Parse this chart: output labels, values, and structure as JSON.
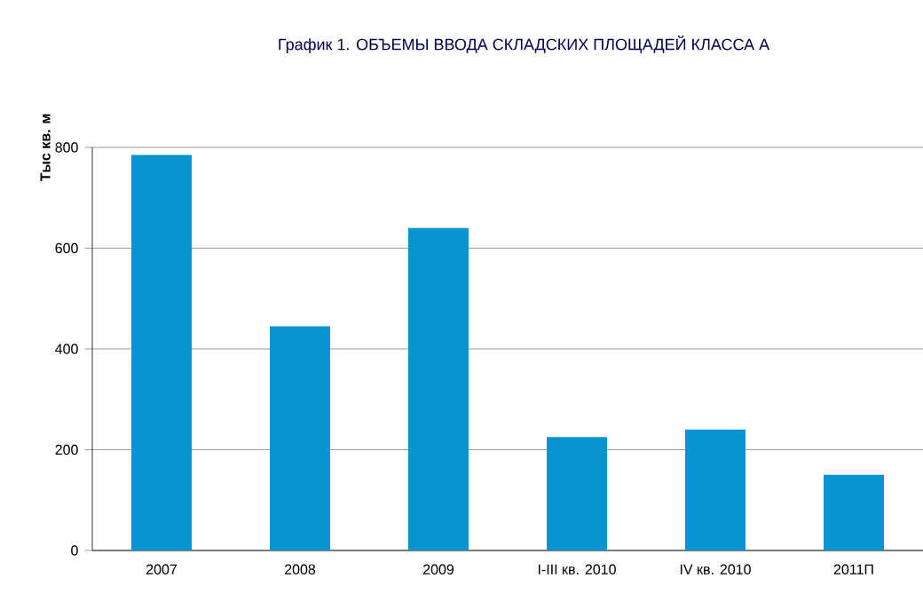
{
  "chart_data": {
    "type": "bar",
    "title": "График 1. ОБЪЕМЫ ВВОДА СКЛАДСКИХ ПЛОЩАДЕЙ КЛАССА А",
    "ylabel": "Тыс кв. м",
    "categories": [
      "2007",
      "2008",
      "2009",
      "I-III кв. 2010",
      "IV кв. 2010",
      "2011П"
    ],
    "values": [
      785,
      445,
      640,
      225,
      240,
      150
    ],
    "color": "#0894d0",
    "ylim": [
      0,
      800
    ],
    "yticks": [
      0,
      200,
      400,
      600,
      800
    ],
    "grid": "y"
  }
}
